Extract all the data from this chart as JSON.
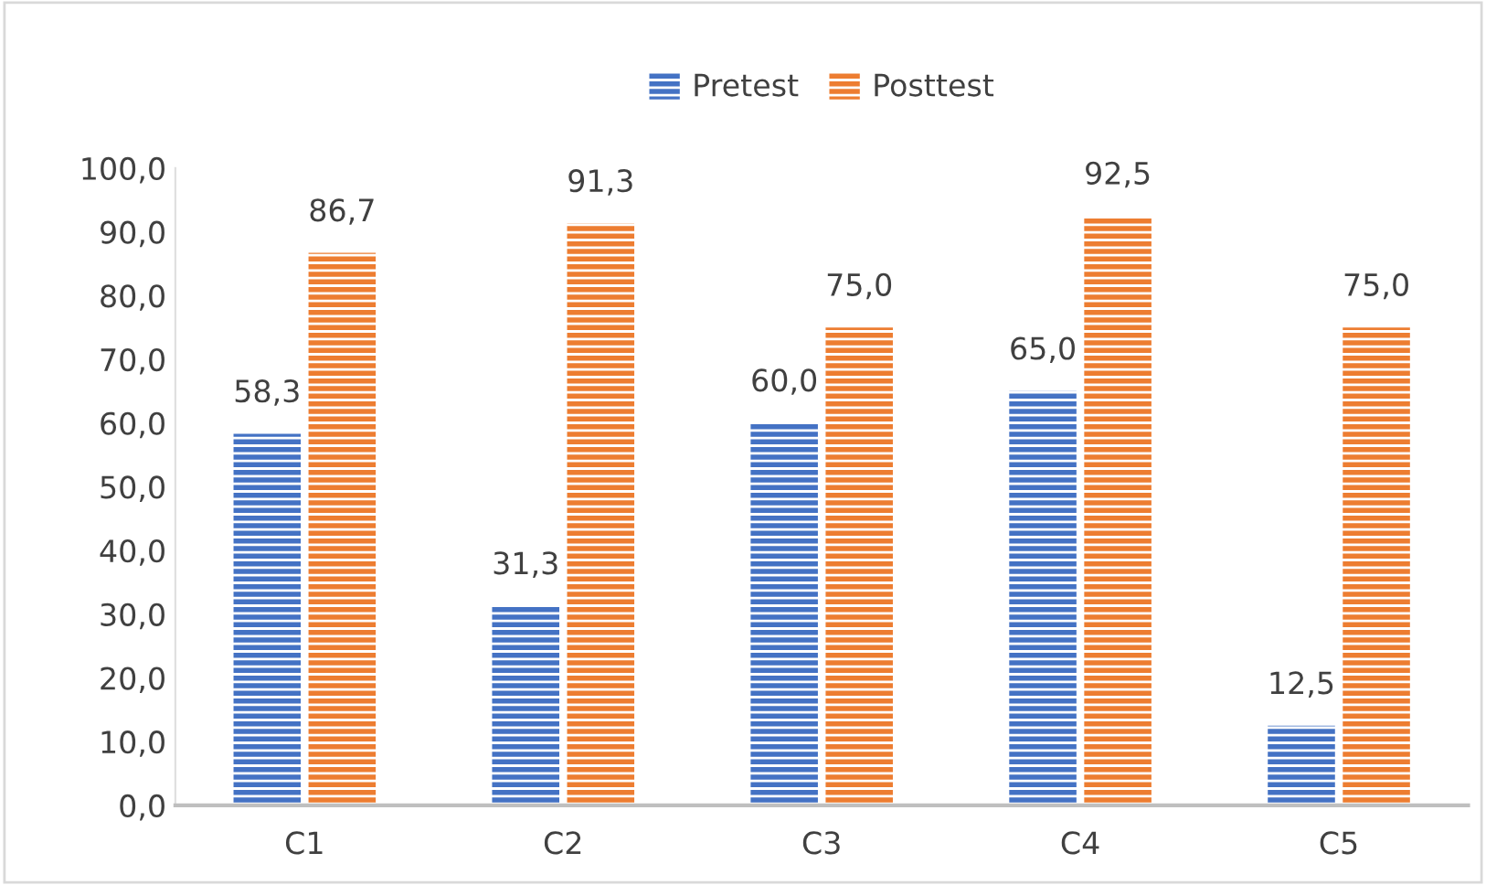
{
  "chart_data": {
    "type": "bar",
    "categories": [
      "C1",
      "C2",
      "C3",
      "C4",
      "C5"
    ],
    "series": [
      {
        "name": "Pretest",
        "color": "#4472c4",
        "values": [
          58.3,
          31.3,
          60.0,
          65.0,
          12.5
        ],
        "value_labels": [
          "58,3",
          "31,3",
          "60,0",
          "65,0",
          "12,5"
        ]
      },
      {
        "name": "Posttest",
        "color": "#ed7d31",
        "values": [
          86.7,
          91.3,
          75.0,
          92.5,
          75.0
        ],
        "value_labels": [
          "86,7",
          "91,3",
          "75,0",
          "92,5",
          "75,0"
        ]
      }
    ],
    "ylim": [
      0,
      100
    ],
    "yticks": [
      {
        "value": 0,
        "label": "0,0"
      },
      {
        "value": 10,
        "label": "10,0"
      },
      {
        "value": 20,
        "label": "20,0"
      },
      {
        "value": 30,
        "label": "30,0"
      },
      {
        "value": 40,
        "label": "40,0"
      },
      {
        "value": 50,
        "label": "50,0"
      },
      {
        "value": 60,
        "label": "60,0"
      },
      {
        "value": 70,
        "label": "70,0"
      },
      {
        "value": 80,
        "label": "80,0"
      },
      {
        "value": 90,
        "label": "90,0"
      },
      {
        "value": 100,
        "label": "100,0"
      }
    ],
    "grid": false,
    "legend": "top"
  }
}
